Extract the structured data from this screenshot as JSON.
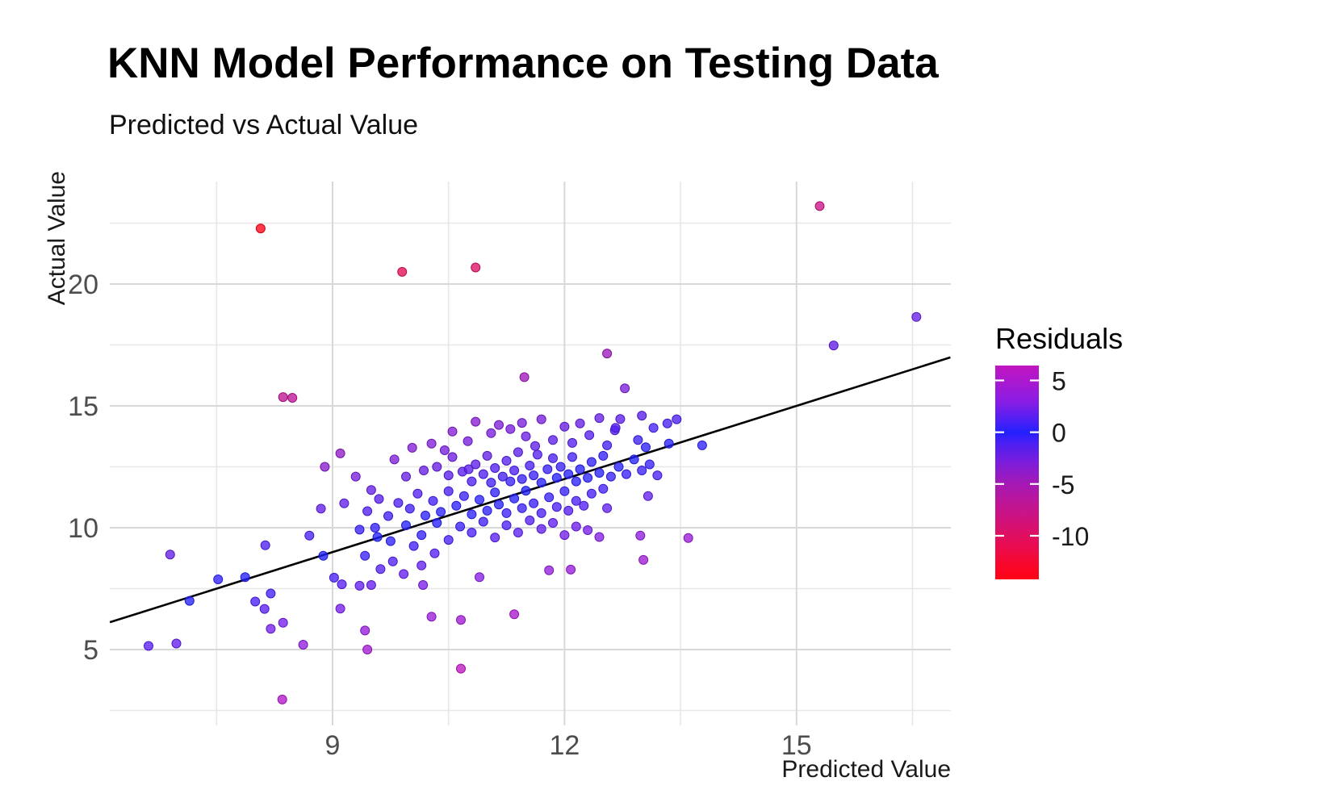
{
  "title": "KNN Model Performance on Testing Data",
  "subtitle": "Predicted vs Actual Value",
  "colors": {
    "background": "#ffffff",
    "grid_major": "#d8d8d8",
    "grid_minor": "#e7e7e7",
    "tick_label": "#4d4d4d",
    "axis_title": "#1a1a1a",
    "reference_line": "#000000",
    "legend_tick": "#ffffff"
  },
  "chart_data": {
    "type": "scatter",
    "title": "KNN Model Performance on Testing Data",
    "subtitle": "Predicted vs Actual Value",
    "xlabel": "Predicted Value",
    "ylabel": "Actual Value",
    "grid": true,
    "xlim": [
      6.12,
      16.99
    ],
    "ylim": [
      1.89,
      24.2
    ],
    "x_ticks": [
      9,
      12,
      15
    ],
    "x_minor_ticks": [
      7.5,
      10.5,
      13.5,
      16.5
    ],
    "y_ticks": [
      5,
      10,
      15,
      20
    ],
    "y_minor_ticks": [
      2.5,
      7.5,
      12.5,
      17.5,
      22.5
    ],
    "reference_line": {
      "slope": 1,
      "intercept": 0,
      "color": "#000000"
    },
    "legend": {
      "title": "Residuals",
      "position": "right",
      "ticks": [
        5,
        0,
        -5,
        -10
      ],
      "range_min": -14.21,
      "range_max": 6.44
    },
    "residual_formula": "predicted - actual",
    "color_stops": [
      [
        6.44,
        "#C116C1"
      ],
      [
        5,
        "#AC18CE"
      ],
      [
        3,
        "#8A1DE4"
      ],
      [
        1,
        "#4A20F6"
      ],
      [
        0,
        "#2121FF"
      ],
      [
        -1,
        "#4A1FF4"
      ],
      [
        -3,
        "#7E1DD9"
      ],
      [
        -5,
        "#A519B5"
      ],
      [
        -7,
        "#C01594"
      ],
      [
        -9,
        "#D51173"
      ],
      [
        -11,
        "#EA0C50"
      ],
      [
        -13,
        "#F90628"
      ],
      [
        -14.21,
        "#FF0317"
      ]
    ],
    "points": [
      [
        8.07,
        22.28
      ],
      [
        15.3,
        23.2
      ],
      [
        9.9,
        20.5
      ],
      [
        10.85,
        20.68
      ],
      [
        16.55,
        18.65
      ],
      [
        15.48,
        17.48
      ],
      [
        12.55,
        17.15
      ],
      [
        11.48,
        16.18
      ],
      [
        12.78,
        15.72
      ],
      [
        8.36,
        15.36
      ],
      [
        8.48,
        15.33
      ],
      [
        6.9,
        8.9
      ],
      [
        6.62,
        5.15
      ],
      [
        6.98,
        5.25
      ],
      [
        7.15,
        7.0
      ],
      [
        7.52,
        7.88
      ],
      [
        7.87,
        7.97
      ],
      [
        8.0,
        6.97
      ],
      [
        8.13,
        9.28
      ],
      [
        8.2,
        7.3
      ],
      [
        8.12,
        6.67
      ],
      [
        8.2,
        5.85
      ],
      [
        8.36,
        6.1
      ],
      [
        8.35,
        2.95
      ],
      [
        8.62,
        5.2
      ],
      [
        9.45,
        5.0
      ],
      [
        10.66,
        4.22
      ],
      [
        8.7,
        9.68
      ],
      [
        8.88,
        8.85
      ],
      [
        9.02,
        7.95
      ],
      [
        9.12,
        7.68
      ],
      [
        9.1,
        6.68
      ],
      [
        9.42,
        5.78
      ],
      [
        9.35,
        7.62
      ],
      [
        9.5,
        7.65
      ],
      [
        9.62,
        8.3
      ],
      [
        9.42,
        8.85
      ],
      [
        9.58,
        9.62
      ],
      [
        9.78,
        8.62
      ],
      [
        9.92,
        8.1
      ],
      [
        10.15,
        8.45
      ],
      [
        10.17,
        7.65
      ],
      [
        10.9,
        7.97
      ],
      [
        10.28,
        6.35
      ],
      [
        10.66,
        6.22
      ],
      [
        11.35,
        6.45
      ],
      [
        10.05,
        9.25
      ],
      [
        10.32,
        8.95
      ],
      [
        11.8,
        8.25
      ],
      [
        12.08,
        8.28
      ],
      [
        12.45,
        9.62
      ],
      [
        12.98,
        9.68
      ],
      [
        13.02,
        8.68
      ],
      [
        13.6,
        9.58
      ],
      [
        8.85,
        10.78
      ],
      [
        9.15,
        11.0
      ],
      [
        8.9,
        12.5
      ],
      [
        9.1,
        13.05
      ],
      [
        9.3,
        12.1
      ],
      [
        9.5,
        11.55
      ],
      [
        9.45,
        10.68
      ],
      [
        9.6,
        11.18
      ],
      [
        9.72,
        10.48
      ],
      [
        9.85,
        11.02
      ],
      [
        9.8,
        12.8
      ],
      [
        10.03,
        13.28
      ],
      [
        10.0,
        10.78
      ],
      [
        10.1,
        11.4
      ],
      [
        10.2,
        10.5
      ],
      [
        10.18,
        12.35
      ],
      [
        9.95,
        12.1
      ],
      [
        10.3,
        11.1
      ],
      [
        10.4,
        10.65
      ],
      [
        10.28,
        13.45
      ],
      [
        10.45,
        13.18
      ],
      [
        10.55,
        13.95
      ],
      [
        10.75,
        13.55
      ],
      [
        10.85,
        14.35
      ],
      [
        11.05,
        13.88
      ],
      [
        11.15,
        14.22
      ],
      [
        11.3,
        14.05
      ],
      [
        11.45,
        14.3
      ],
      [
        11.5,
        13.75
      ],
      [
        11.62,
        13.35
      ],
      [
        11.7,
        14.45
      ],
      [
        11.85,
        13.6
      ],
      [
        12.0,
        14.15
      ],
      [
        12.1,
        13.48
      ],
      [
        12.2,
        14.28
      ],
      [
        12.32,
        13.8
      ],
      [
        12.45,
        14.5
      ],
      [
        12.55,
        13.38
      ],
      [
        12.65,
        14.0
      ],
      [
        12.72,
        14.46
      ],
      [
        12.66,
        14.1
      ],
      [
        13.0,
        14.6
      ],
      [
        13.15,
        14.1
      ],
      [
        13.33,
        14.28
      ],
      [
        13.45,
        14.45
      ],
      [
        12.95,
        13.6
      ],
      [
        13.05,
        13.3
      ],
      [
        13.35,
        13.45
      ],
      [
        13.78,
        13.38
      ],
      [
        10.35,
        12.5
      ],
      [
        10.5,
        12.15
      ],
      [
        10.55,
        12.9
      ],
      [
        10.68,
        12.3
      ],
      [
        10.8,
        11.9
      ],
      [
        10.85,
        12.6
      ],
      [
        10.95,
        12.2
      ],
      [
        11.0,
        12.95
      ],
      [
        11.05,
        11.85
      ],
      [
        11.1,
        12.45
      ],
      [
        11.2,
        12.1
      ],
      [
        11.25,
        12.75
      ],
      [
        11.3,
        11.9
      ],
      [
        11.35,
        12.35
      ],
      [
        11.4,
        13.1
      ],
      [
        11.45,
        12.0
      ],
      [
        11.55,
        12.55
      ],
      [
        11.6,
        12.15
      ],
      [
        11.65,
        13.0
      ],
      [
        11.7,
        11.85
      ],
      [
        11.78,
        12.4
      ],
      [
        11.85,
        12.85
      ],
      [
        11.9,
        12.05
      ],
      [
        11.95,
        12.5
      ],
      [
        12.05,
        12.2
      ],
      [
        12.1,
        12.9
      ],
      [
        12.15,
        11.9
      ],
      [
        12.2,
        12.4
      ],
      [
        12.3,
        12.05
      ],
      [
        12.35,
        12.7
      ],
      [
        12.45,
        12.25
      ],
      [
        12.5,
        12.95
      ],
      [
        12.6,
        12.1
      ],
      [
        12.7,
        12.5
      ],
      [
        12.8,
        12.2
      ],
      [
        12.9,
        12.8
      ],
      [
        13.0,
        12.35
      ],
      [
        13.1,
        12.6
      ],
      [
        13.2,
        12.15
      ],
      [
        10.76,
        12.4
      ],
      [
        10.5,
        11.5
      ],
      [
        10.6,
        10.9
      ],
      [
        10.7,
        11.3
      ],
      [
        10.8,
        10.55
      ],
      [
        10.9,
        11.15
      ],
      [
        11.0,
        10.7
      ],
      [
        11.1,
        11.45
      ],
      [
        11.15,
        10.95
      ],
      [
        11.25,
        10.6
      ],
      [
        11.35,
        11.2
      ],
      [
        11.45,
        10.8
      ],
      [
        11.5,
        11.52
      ],
      [
        11.6,
        11.0
      ],
      [
        11.7,
        10.6
      ],
      [
        11.8,
        11.25
      ],
      [
        11.9,
        10.85
      ],
      [
        12.0,
        11.5
      ],
      [
        12.05,
        10.7
      ],
      [
        12.15,
        11.1
      ],
      [
        12.25,
        10.9
      ],
      [
        12.35,
        11.4
      ],
      [
        12.5,
        11.6
      ],
      [
        12.55,
        10.8
      ],
      [
        13.08,
        11.3
      ],
      [
        9.35,
        9.92
      ],
      [
        9.55,
        10.0
      ],
      [
        9.75,
        9.45
      ],
      [
        9.95,
        10.1
      ],
      [
        10.15,
        9.7
      ],
      [
        10.35,
        10.2
      ],
      [
        10.5,
        9.5
      ],
      [
        10.65,
        10.05
      ],
      [
        10.8,
        9.8
      ],
      [
        10.95,
        10.25
      ],
      [
        11.1,
        9.6
      ],
      [
        11.25,
        10.1
      ],
      [
        11.4,
        9.8
      ],
      [
        11.55,
        10.3
      ],
      [
        11.7,
        9.95
      ],
      [
        11.85,
        10.2
      ],
      [
        12.0,
        9.7
      ],
      [
        12.15,
        10.05
      ],
      [
        12.3,
        9.9
      ]
    ]
  }
}
